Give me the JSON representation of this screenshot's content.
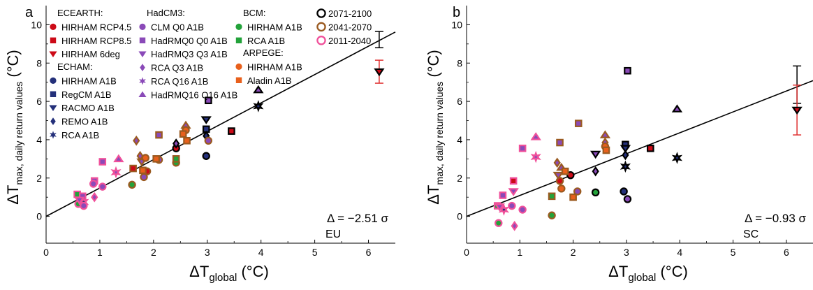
{
  "colors": {
    "ecearth": "#cc0a17",
    "hadcm3": "#8a4ab8",
    "echam": "#24307a",
    "bcm": "#23a23a",
    "arpege": "#e8601c",
    "p2071": "#000000",
    "p2041": "#9a5a20",
    "p2011": "#f0509a"
  },
  "legend": {
    "groups": [
      {
        "header": "ECEARTH:",
        "color": "ecearth",
        "items": [
          {
            "label": "HIRHAM RCP4.5",
            "marker": "circle"
          },
          {
            "label": "HIRHAM RCP8.5",
            "marker": "square"
          },
          {
            "label": "HIRHAM 6deg",
            "marker": "triangle-down"
          }
        ]
      },
      {
        "header": "ECHAM:",
        "color": "echam",
        "items": [
          {
            "label": "HIRHAM A1B",
            "marker": "circle"
          },
          {
            "label": "RegCM A1B",
            "marker": "square"
          },
          {
            "label": "RACMO A1B",
            "marker": "triangle-down"
          },
          {
            "label": "REMO A1B",
            "marker": "diamond"
          },
          {
            "label": "RCA A1B",
            "marker": "star"
          }
        ]
      },
      {
        "header": "HadCM3:",
        "color": "hadcm3",
        "items": [
          {
            "label": "CLM Q0 A1B",
            "marker": "circle"
          },
          {
            "label": "HadRMQ0 Q0 A1B",
            "marker": "square"
          },
          {
            "label": "HadRMQ3 Q3 A1B",
            "marker": "triangle-down"
          },
          {
            "label": "RCA Q3 A1B",
            "marker": "diamond"
          },
          {
            "label": "RCA Q16 A1B",
            "marker": "star"
          },
          {
            "label": "HadRMQ16 Q16 A1B",
            "marker": "triangle-up"
          }
        ]
      },
      {
        "header": "BCM:",
        "color": "bcm",
        "items": [
          {
            "label": "HIRHAM A1B",
            "marker": "circle"
          },
          {
            "label": "RCA A1B",
            "marker": "square"
          }
        ]
      },
      {
        "header": "ARPEGE:",
        "color": "arpege",
        "items": [
          {
            "label": "HIRHAM A1B",
            "marker": "circle"
          },
          {
            "label": "Aladin A1B",
            "marker": "square"
          }
        ]
      }
    ],
    "periods": [
      {
        "label": "2071-2100",
        "color": "p2071"
      },
      {
        "label": "2041-2070",
        "color": "p2041"
      },
      {
        "label": "2011-2040",
        "color": "p2011"
      }
    ]
  },
  "chart_data": [
    {
      "type": "scatter",
      "panel_label": "a",
      "region": "EU",
      "delta_text": "Δ = −2.51 σ",
      "xlabel": {
        "main": "ΔT",
        "sub": "global",
        "unit": " (°C)"
      },
      "ylabel": {
        "main": "ΔT",
        "sub": "max, daily return values",
        "unit": " (°C)"
      },
      "xlim": [
        0,
        6.5
      ],
      "ylim": [
        -1.4,
        11
      ],
      "xticks": [
        0,
        1,
        2,
        3,
        4,
        5,
        6
      ],
      "yticks": [
        0,
        2,
        4,
        6,
        8,
        10
      ],
      "fit_line": {
        "slope": 1.48,
        "intercept": 0
      },
      "error_bars": [
        {
          "x": 6.2,
          "low": 8.8,
          "high": 9.65,
          "color": "#000000"
        },
        {
          "x": 6.2,
          "low": 6.95,
          "high": 8.15,
          "color": "#e03030"
        }
      ],
      "points": [
        {
          "x": 6.2,
          "y": 7.55,
          "m": "triangle-down",
          "g": "ecearth",
          "p": "p2071"
        },
        {
          "x": 2.42,
          "y": 3.55,
          "m": "circle",
          "g": "ecearth",
          "p": "p2071"
        },
        {
          "x": 3.45,
          "y": 4.45,
          "m": "square",
          "g": "ecearth",
          "p": "p2071"
        },
        {
          "x": 1.88,
          "y": 2.35,
          "m": "circle",
          "g": "ecearth",
          "p": "p2041"
        },
        {
          "x": 1.62,
          "y": 2.5,
          "m": "square",
          "g": "ecearth",
          "p": "p2041"
        },
        {
          "x": 1.6,
          "y": 1.65,
          "m": "circle",
          "g": "bcm",
          "p": "p2041"
        },
        {
          "x": 2.42,
          "y": 2.8,
          "m": "circle",
          "g": "bcm",
          "p": "p2041"
        },
        {
          "x": 2.42,
          "y": 3.0,
          "m": "square",
          "g": "bcm",
          "p": "p2041"
        },
        {
          "x": 0.6,
          "y": 0.65,
          "m": "circle",
          "g": "bcm",
          "p": "p2011"
        },
        {
          "x": 0.58,
          "y": 1.15,
          "m": "square",
          "g": "bcm",
          "p": "p2011"
        },
        {
          "x": 2.98,
          "y": 3.15,
          "m": "circle",
          "g": "echam",
          "p": "p2071"
        },
        {
          "x": 2.98,
          "y": 4.55,
          "m": "square",
          "g": "echam",
          "p": "p2071"
        },
        {
          "x": 2.98,
          "y": 5.05,
          "m": "triangle-down",
          "g": "echam",
          "p": "p2071"
        },
        {
          "x": 2.98,
          "y": 4.2,
          "m": "diamond",
          "g": "echam",
          "p": "p2071"
        },
        {
          "x": 3.95,
          "y": 5.75,
          "m": "star",
          "g": "echam",
          "p": "p2071"
        },
        {
          "x": 0.7,
          "y": 0.75,
          "m": "star",
          "g": "echam",
          "p": "p2011"
        },
        {
          "x": 3.02,
          "y": 6.05,
          "m": "square",
          "g": "hadcm3",
          "p": "p2071"
        },
        {
          "x": 3.95,
          "y": 6.6,
          "m": "triangle-up",
          "g": "hadcm3",
          "p": "p2071"
        },
        {
          "x": 3.02,
          "y": 3.95,
          "m": "circle",
          "g": "hadcm3",
          "p": "p2041"
        },
        {
          "x": 2.42,
          "y": 3.8,
          "m": "diamond",
          "g": "hadcm3",
          "p": "p2071"
        },
        {
          "x": 2.6,
          "y": 4.75,
          "m": "triangle-up",
          "g": "hadcm3",
          "p": "p2041"
        },
        {
          "x": 2.1,
          "y": 4.25,
          "m": "square",
          "g": "hadcm3",
          "p": "p2041"
        },
        {
          "x": 1.68,
          "y": 3.95,
          "m": "diamond",
          "g": "hadcm3",
          "p": "p2041"
        },
        {
          "x": 2.1,
          "y": 2.95,
          "m": "circle",
          "g": "hadcm3",
          "p": "p2041"
        },
        {
          "x": 1.82,
          "y": 2.05,
          "m": "circle",
          "g": "hadcm3",
          "p": "p2041"
        },
        {
          "x": 1.78,
          "y": 2.85,
          "m": "triangle-down",
          "g": "hadcm3",
          "p": "p2041"
        },
        {
          "x": 1.75,
          "y": 3.15,
          "m": "diamond",
          "g": "hadcm3",
          "p": "p2041"
        },
        {
          "x": 1.05,
          "y": 2.85,
          "m": "square",
          "g": "hadcm3",
          "p": "p2011"
        },
        {
          "x": 1.35,
          "y": 3.0,
          "m": "triangle-up",
          "g": "hadcm3",
          "p": "p2011"
        },
        {
          "x": 1.3,
          "y": 2.3,
          "m": "star",
          "g": "hadcm3",
          "p": "p2011"
        },
        {
          "x": 0.9,
          "y": 1.85,
          "m": "square",
          "g": "hadcm3",
          "p": "p2011"
        },
        {
          "x": 1.05,
          "y": 1.55,
          "m": "circle",
          "g": "hadcm3",
          "p": "p2011"
        },
        {
          "x": 0.9,
          "y": 1.0,
          "m": "diamond",
          "g": "hadcm3",
          "p": "p2011"
        },
        {
          "x": 0.88,
          "y": 1.7,
          "m": "circle",
          "g": "hadcm3",
          "p": "p2011"
        },
        {
          "x": 0.7,
          "y": 0.55,
          "m": "circle",
          "g": "hadcm3",
          "p": "p2011"
        },
        {
          "x": 0.68,
          "y": 1.05,
          "m": "square",
          "g": "hadcm3",
          "p": "p2011"
        },
        {
          "x": 0.62,
          "y": 0.85,
          "m": "triangle-down",
          "g": "hadcm3",
          "p": "p2011"
        },
        {
          "x": 2.6,
          "y": 4.5,
          "m": "circle",
          "g": "arpege",
          "p": "p2041"
        },
        {
          "x": 2.62,
          "y": 3.95,
          "m": "square",
          "g": "arpege",
          "p": "p2041"
        },
        {
          "x": 2.55,
          "y": 4.3,
          "m": "square",
          "g": "arpege",
          "p": "p2041"
        },
        {
          "x": 1.85,
          "y": 3.05,
          "m": "circle",
          "g": "arpege",
          "p": "p2041"
        },
        {
          "x": 2.05,
          "y": 3.0,
          "m": "square",
          "g": "arpege",
          "p": "p2041"
        },
        {
          "x": 1.8,
          "y": 2.4,
          "m": "square",
          "g": "arpege",
          "p": "p2041"
        }
      ]
    },
    {
      "type": "scatter",
      "panel_label": "b",
      "region": "SC",
      "delta_text": "Δ = −0.93 σ",
      "xlabel": {
        "main": "ΔT",
        "sub": "global",
        "unit": " (°C)"
      },
      "ylabel": {
        "main": "ΔT",
        "sub": "max, daily return values",
        "unit": " (°C)"
      },
      "xlim": [
        0,
        6.5
      ],
      "ylim": [
        -1.4,
        11
      ],
      "xticks": [
        0,
        1,
        2,
        3,
        4,
        5,
        6
      ],
      "yticks": [
        0,
        2,
        4,
        6,
        8,
        10
      ],
      "fit_line": {
        "slope": 1.09,
        "intercept": 0
      },
      "error_bars": [
        {
          "x": 6.2,
          "low": 5.9,
          "high": 7.85,
          "color": "#000000"
        },
        {
          "x": 6.2,
          "low": 4.25,
          "high": 6.85,
          "color": "#e03030"
        }
      ],
      "points": [
        {
          "x": 6.2,
          "y": 5.55,
          "m": "triangle-down",
          "g": "ecearth",
          "p": "p2071"
        },
        {
          "x": 1.95,
          "y": 2.15,
          "m": "circle",
          "g": "ecearth",
          "p": "p2071"
        },
        {
          "x": 3.45,
          "y": 3.55,
          "m": "square",
          "g": "ecearth",
          "p": "p2071"
        },
        {
          "x": 1.75,
          "y": 1.85,
          "m": "circle",
          "g": "ecearth",
          "p": "p2041"
        },
        {
          "x": 0.88,
          "y": 1.85,
          "m": "square",
          "g": "ecearth",
          "p": "p2011"
        },
        {
          "x": 1.6,
          "y": 0.05,
          "m": "circle",
          "g": "bcm",
          "p": "p2041"
        },
        {
          "x": 2.42,
          "y": 1.25,
          "m": "circle",
          "g": "bcm",
          "p": "p2071"
        },
        {
          "x": 1.6,
          "y": 1.05,
          "m": "square",
          "g": "bcm",
          "p": "p2041"
        },
        {
          "x": 0.6,
          "y": -0.35,
          "m": "circle",
          "g": "bcm",
          "p": "p2011"
        },
        {
          "x": 0.58,
          "y": 0.55,
          "m": "square",
          "g": "bcm",
          "p": "p2011"
        },
        {
          "x": 2.95,
          "y": 1.3,
          "m": "circle",
          "g": "echam",
          "p": "p2071"
        },
        {
          "x": 2.98,
          "y": 3.75,
          "m": "square",
          "g": "echam",
          "p": "p2071"
        },
        {
          "x": 2.98,
          "y": 3.55,
          "m": "triangle-down",
          "g": "echam",
          "p": "p2071"
        },
        {
          "x": 2.98,
          "y": 3.2,
          "m": "diamond",
          "g": "echam",
          "p": "p2071"
        },
        {
          "x": 2.98,
          "y": 2.6,
          "m": "star",
          "g": "echam",
          "p": "p2071"
        },
        {
          "x": 3.95,
          "y": 3.05,
          "m": "star",
          "g": "echam",
          "p": "p2071"
        },
        {
          "x": 0.7,
          "y": 0.35,
          "m": "star",
          "g": "echam",
          "p": "p2011"
        },
        {
          "x": 3.02,
          "y": 7.6,
          "m": "square",
          "g": "hadcm3",
          "p": "p2071"
        },
        {
          "x": 3.95,
          "y": 5.6,
          "m": "triangle-up",
          "g": "hadcm3",
          "p": "p2071"
        },
        {
          "x": 3.02,
          "y": 0.9,
          "m": "circle",
          "g": "hadcm3",
          "p": "p2071"
        },
        {
          "x": 2.42,
          "y": 3.25,
          "m": "triangle-down",
          "g": "hadcm3",
          "p": "p2071"
        },
        {
          "x": 2.42,
          "y": 2.35,
          "m": "diamond",
          "g": "hadcm3",
          "p": "p2071"
        },
        {
          "x": 2.1,
          "y": 4.85,
          "m": "square",
          "g": "hadcm3",
          "p": "p2041"
        },
        {
          "x": 2.6,
          "y": 4.25,
          "m": "triangle-up",
          "g": "hadcm3",
          "p": "p2041"
        },
        {
          "x": 2.6,
          "y": 3.85,
          "m": "diamond",
          "g": "hadcm3",
          "p": "p2041"
        },
        {
          "x": 1.75,
          "y": 3.85,
          "m": "square",
          "g": "hadcm3",
          "p": "p2041"
        },
        {
          "x": 1.7,
          "y": 2.8,
          "m": "diamond",
          "g": "hadcm3",
          "p": "p2041"
        },
        {
          "x": 1.78,
          "y": 2.55,
          "m": "triangle-up",
          "g": "hadcm3",
          "p": "p2041"
        },
        {
          "x": 1.72,
          "y": 2.15,
          "m": "triangle-down",
          "g": "hadcm3",
          "p": "p2041"
        },
        {
          "x": 2.08,
          "y": 1.3,
          "m": "circle",
          "g": "hadcm3",
          "p": "p2041"
        },
        {
          "x": 1.3,
          "y": 4.15,
          "m": "triangle-up",
          "g": "hadcm3",
          "p": "p2011"
        },
        {
          "x": 1.3,
          "y": 3.1,
          "m": "star",
          "g": "hadcm3",
          "p": "p2011"
        },
        {
          "x": 1.05,
          "y": 3.55,
          "m": "square",
          "g": "hadcm3",
          "p": "p2011"
        },
        {
          "x": 0.88,
          "y": 1.3,
          "m": "triangle-down",
          "g": "hadcm3",
          "p": "p2011"
        },
        {
          "x": 0.9,
          "y": -0.5,
          "m": "diamond",
          "g": "hadcm3",
          "p": "p2011"
        },
        {
          "x": 1.05,
          "y": 0.35,
          "m": "circle",
          "g": "hadcm3",
          "p": "p2011"
        },
        {
          "x": 0.68,
          "y": 1.1,
          "m": "square",
          "g": "hadcm3",
          "p": "p2011"
        },
        {
          "x": 0.62,
          "y": 0.5,
          "m": "triangle-down",
          "g": "hadcm3",
          "p": "p2011"
        },
        {
          "x": 0.85,
          "y": 0.55,
          "m": "circle",
          "g": "hadcm3",
          "p": "p2011"
        },
        {
          "x": 2.6,
          "y": 3.65,
          "m": "circle",
          "g": "arpege",
          "p": "p2041"
        },
        {
          "x": 2.62,
          "y": 3.45,
          "m": "square",
          "g": "arpege",
          "p": "p2041"
        },
        {
          "x": 1.85,
          "y": 2.35,
          "m": "square",
          "g": "arpege",
          "p": "p2041"
        },
        {
          "x": 1.78,
          "y": 1.45,
          "m": "circle",
          "g": "arpege",
          "p": "p2041"
        },
        {
          "x": 2.0,
          "y": 1.0,
          "m": "square",
          "g": "arpege",
          "p": "p2041"
        }
      ]
    }
  ]
}
